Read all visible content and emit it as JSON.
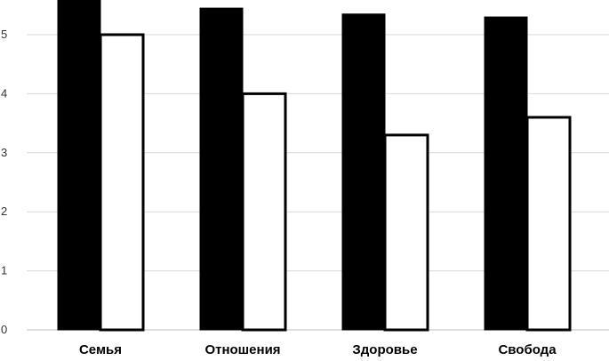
{
  "chart_data": {
    "type": "bar",
    "categories": [
      "Семья",
      "Отношения",
      "Здоровье",
      "Свобода"
    ],
    "series": [
      {
        "values": [
          5.6,
          5.45,
          5.35,
          5.3
        ],
        "color": "#000000",
        "stroke": "#000000"
      },
      {
        "values": [
          5.0,
          4.0,
          3.3,
          3.6
        ],
        "color": "#ffffff",
        "stroke": "#000000"
      }
    ],
    "y_ticks": [
      "0",
      "1",
      "2",
      "3",
      "4",
      "5"
    ],
    "ylim": [
      0,
      5.6
    ],
    "grid": true,
    "legend": "none",
    "title": "",
    "xlabel": "",
    "ylabel": ""
  }
}
